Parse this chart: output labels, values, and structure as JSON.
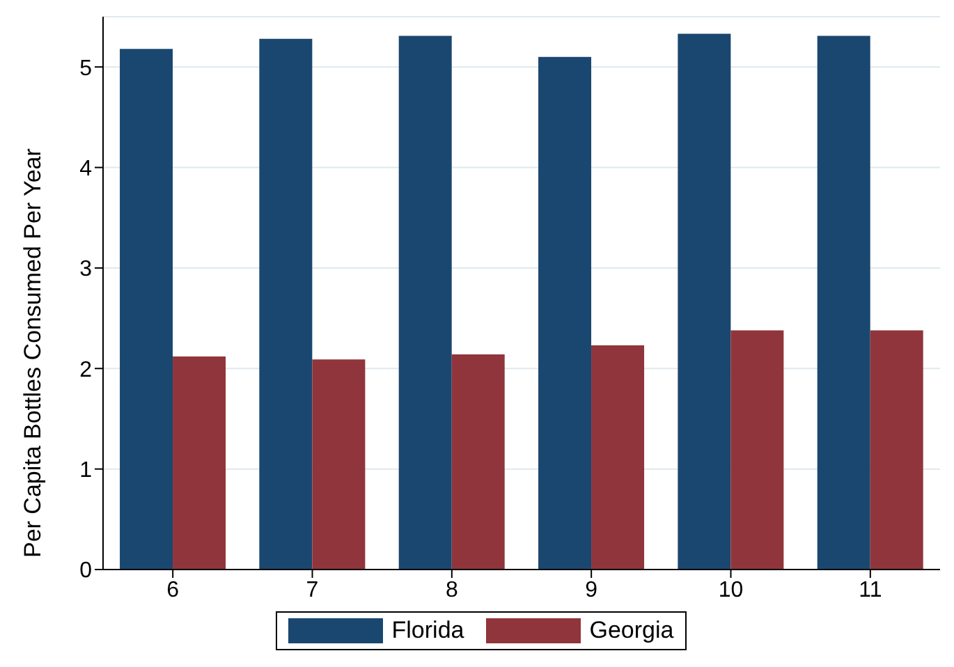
{
  "chart_data": {
    "type": "bar",
    "ylabel": "Per Capita Bottles Consumed Per Year",
    "categories": [
      "6",
      "7",
      "8",
      "9",
      "10",
      "11"
    ],
    "series": [
      {
        "name": "Florida",
        "color": "#1a476f",
        "values": [
          5.18,
          5.28,
          5.31,
          5.1,
          5.33,
          5.31
        ]
      },
      {
        "name": "Georgia",
        "color": "#90353b",
        "values": [
          2.12,
          2.09,
          2.14,
          2.23,
          2.38,
          2.38
        ]
      }
    ],
    "ylim": [
      0,
      5.5
    ],
    "yticks": [
      0,
      1,
      2,
      3,
      4,
      5
    ],
    "grid": "y",
    "legend": "bottom"
  }
}
